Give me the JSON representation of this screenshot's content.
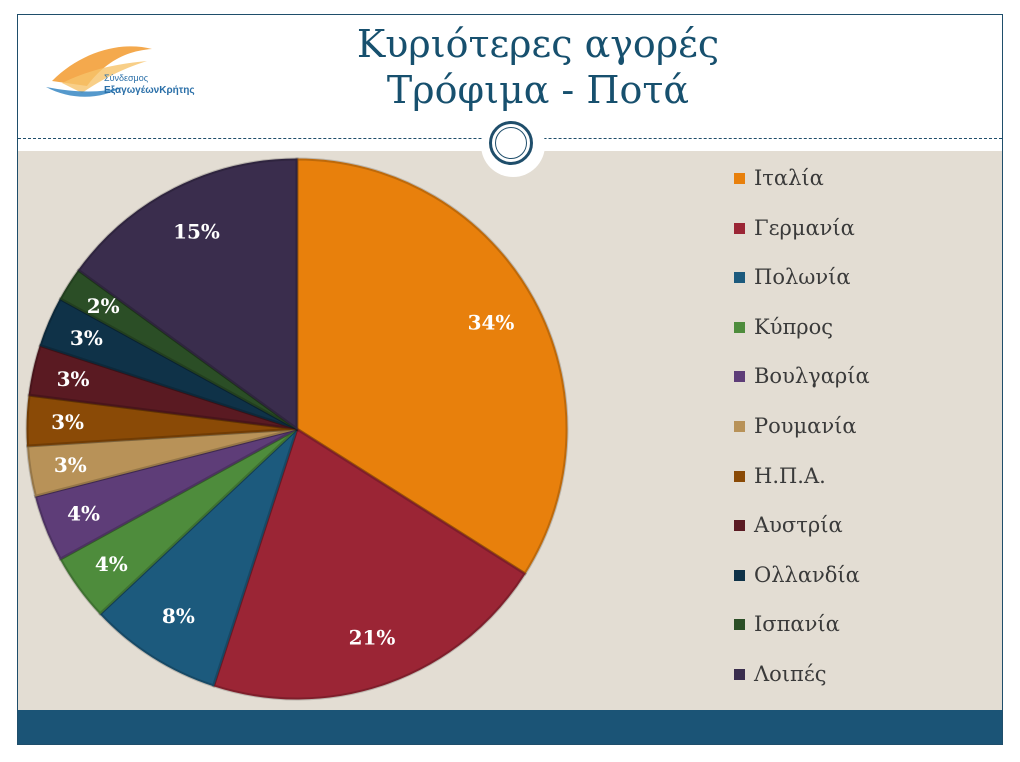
{
  "title": {
    "line1": "Κυριότερες αγορές",
    "line2": "Τρόφιμα - Ποτά"
  },
  "logo": {
    "line1": "Σύνδεσμος",
    "line2": "ΕξαγωγέωνΚρήτης"
  },
  "colors": {
    "title": "#17506e",
    "background": "#e3ddd3",
    "footer": "#1b5476"
  },
  "chart_data": {
    "type": "pie",
    "labels_format": "percent",
    "legend_position": "right",
    "slices": [
      {
        "name": "Ιταλία",
        "value": 34,
        "label": "34%",
        "color": "#e8800c"
      },
      {
        "name": "Γερμανία",
        "value": 21,
        "label": "21%",
        "color": "#9b2535"
      },
      {
        "name": "Πολωνία",
        "value": 8,
        "label": "8%",
        "color": "#1c5a7d"
      },
      {
        "name": "Κύπρος",
        "value": 4,
        "label": "4%",
        "color": "#4e8c3c"
      },
      {
        "name": "Βουλγαρία",
        "value": 4,
        "label": "4%",
        "color": "#5e3d78"
      },
      {
        "name": "Ρουμανία",
        "value": 3,
        "label": "3%",
        "color": "#b89258"
      },
      {
        "name": "Η.Π.Α.",
        "value": 3,
        "label": "3%",
        "color": "#8a4a06"
      },
      {
        "name": "Αυστρία",
        "value": 3,
        "label": "3%",
        "color": "#5a1a22"
      },
      {
        "name": "Ολλανδία",
        "value": 3,
        "label": "3%",
        "color": "#0f3248"
      },
      {
        "name": "Ισπανία",
        "value": 2,
        "label": "2%",
        "color": "#2b4e26"
      },
      {
        "name": "Λοιπές",
        "value": 15,
        "label": "15%",
        "color": "#3a2d4d"
      }
    ]
  }
}
